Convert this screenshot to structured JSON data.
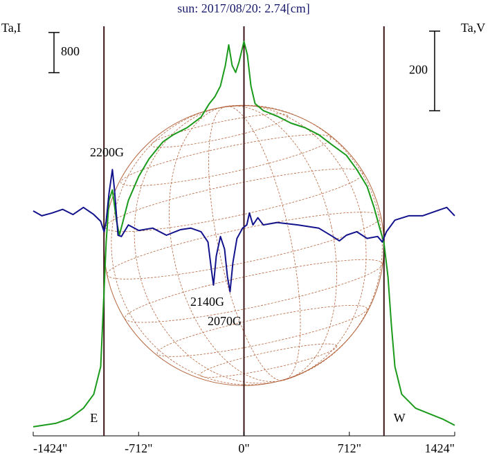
{
  "chart_data": {
    "type": "line",
    "title": "sun: 2017/08/20: 2.74[cm]",
    "ylabel": "Ta,I",
    "y2label": "Ta,V",
    "xlim": [
      -1424,
      1424
    ],
    "xticks": [
      {
        "value": -1424,
        "label": "-1424\""
      },
      {
        "value": -712,
        "label": "-712\""
      },
      {
        "value": 0,
        "label": "0\""
      },
      {
        "value": 712,
        "label": "712\""
      },
      {
        "value": 1424,
        "label": "1424\""
      }
    ],
    "ylim": [
      0,
      8160
    ],
    "y2lim": [
      -539,
      490
    ],
    "scale_bar_y": 800,
    "scale_bar_y2": 200,
    "solar_radius": 946,
    "limb_labels": [
      "E",
      "W"
    ],
    "annotations": [
      "2200G",
      "2140G",
      "2070G"
    ],
    "series": [
      {
        "color": "#1a9a1a",
        "x": [
          -1424,
          -1272,
          -1179,
          -1085,
          -1015,
          -968,
          -945,
          -931,
          -912,
          -889,
          -861,
          -842,
          -823,
          -781,
          -711,
          -641,
          -547,
          -477,
          -384,
          -290,
          -234,
          -196,
          -159,
          -126,
          -103,
          -80,
          -56,
          -33,
          0,
          23,
          47,
          75,
          131,
          224,
          318,
          412,
          505,
          599,
          692,
          762,
          832,
          879,
          917,
          945,
          973,
          996,
          1020,
          1066,
          1160,
          1253,
          1347,
          1424
        ],
        "values": [
          180,
          250,
          345,
          550,
          830,
          1380,
          2900,
          3860,
          4690,
          4900,
          4280,
          4000,
          4210,
          4690,
          5170,
          5520,
          5860,
          6000,
          6140,
          6350,
          6620,
          6760,
          6970,
          7380,
          7790,
          7380,
          7240,
          7450,
          7860,
          7590,
          6970,
          6620,
          6480,
          6370,
          6230,
          6140,
          6000,
          5790,
          5590,
          5310,
          4970,
          4550,
          4140,
          3860,
          3170,
          2210,
          1380,
          830,
          550,
          440,
          330,
          210
        ]
      },
      {
        "color": "#12128c",
        "axis": "y2",
        "x": [
          -1424,
          -1366,
          -1296,
          -1225,
          -1155,
          -1085,
          -1015,
          -968,
          -945,
          -931,
          -912,
          -889,
          -875,
          -851,
          -828,
          -781,
          -711,
          -617,
          -524,
          -430,
          -360,
          -290,
          -243,
          -220,
          -206,
          -187,
          -159,
          -131,
          -112,
          -94,
          -75,
          -47,
          -9,
          19,
          37,
          61,
          94,
          131,
          224,
          365,
          505,
          599,
          645,
          692,
          762,
          832,
          903,
          935,
          963,
          1020,
          1113,
          1207,
          1300,
          1370,
          1424
        ],
        "values": [
          26,
          14,
          21,
          30,
          17,
          35,
          17,
          0,
          -26,
          0,
          70,
          130,
          80,
          -35,
          -38,
          -9,
          -23,
          -17,
          -35,
          -21,
          -17,
          -26,
          -52,
          -122,
          -160,
          -87,
          -38,
          -70,
          -139,
          -177,
          -104,
          -43,
          -17,
          -9,
          21,
          -9,
          9,
          -9,
          -3,
          -9,
          -17,
          -38,
          -49,
          -35,
          -26,
          -43,
          -38,
          -52,
          -26,
          3,
          14,
          14,
          26,
          35,
          14
        ]
      }
    ]
  }
}
